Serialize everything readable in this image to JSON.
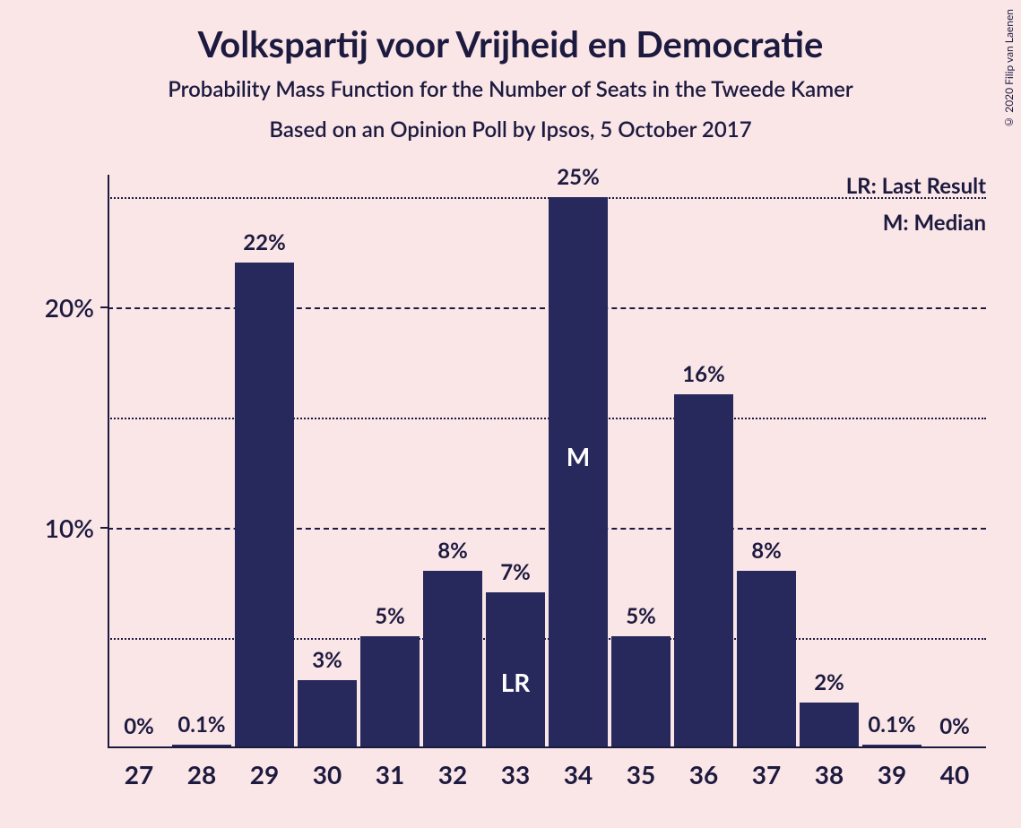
{
  "title": "Volkspartij voor Vrijheid en Democratie",
  "subtitle1": "Probability Mass Function for the Number of Seats in the Tweede Kamer",
  "subtitle2": "Based on an Opinion Poll by Ipsos, 5 October 2017",
  "copyright": "© 2020 Filip van Laenen",
  "legend": {
    "lr": "LR: Last Result",
    "m": "M: Median"
  },
  "chart": {
    "type": "bar",
    "background_color": "#fae6e7",
    "bar_color": "#27285c",
    "text_color": "#1d1a3f",
    "grid_color": "#1d1a3f",
    "categories": [
      27,
      28,
      29,
      30,
      31,
      32,
      33,
      34,
      35,
      36,
      37,
      38,
      39,
      40
    ],
    "values": [
      0,
      0.1,
      22,
      3,
      5,
      8,
      7,
      25,
      5,
      16,
      8,
      2,
      0.1,
      0
    ],
    "value_labels": [
      "0%",
      "0.1%",
      "22%",
      "3%",
      "5%",
      "8%",
      "7%",
      "25%",
      "5%",
      "16%",
      "8%",
      "2%",
      "0.1%",
      "0%"
    ],
    "inner_labels": {
      "33": "LR",
      "34": "M"
    },
    "ylim": [
      0,
      26
    ],
    "y_ticks_major": [
      10,
      20
    ],
    "y_ticks_minor": [
      5,
      15,
      25
    ],
    "y_tick_labels": [
      "10%",
      "20%"
    ],
    "bar_width_ratio": 0.93,
    "title_fontsize": 40,
    "subtitle_fontsize": 24,
    "axis_label_fontsize": 28,
    "bar_label_fontsize": 24
  }
}
